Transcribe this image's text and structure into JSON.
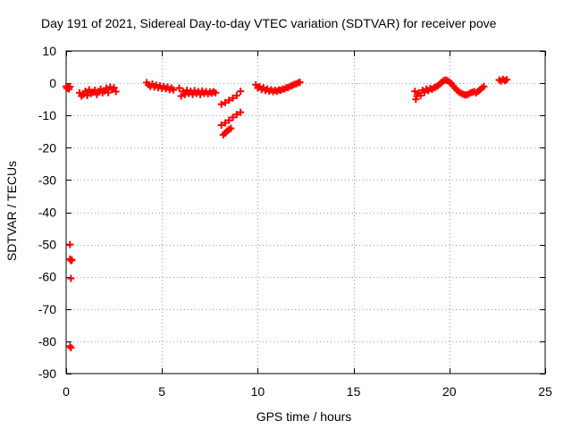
{
  "chart_data": {
    "type": "scatter",
    "title": "Day 191 of 2021, Sidereal Day-to-day VTEC variation (SDTVAR) for receiver pove",
    "xlabel": "GPS time / hours",
    "ylabel": "SDTVAR / TECUs",
    "xlim": [
      0,
      25
    ],
    "ylim": [
      -90,
      10
    ],
    "xticks": [
      0,
      5,
      10,
      15,
      20,
      25
    ],
    "yticks": [
      10,
      0,
      -10,
      -20,
      -30,
      -40,
      -50,
      -60,
      -70,
      -80,
      -90
    ],
    "grid": true,
    "marker": "+",
    "colors": {
      "points": "#ff0000",
      "grid": "#a0a0a0",
      "axis": "#000000"
    },
    "series": [
      {
        "name": "SDTVAR",
        "points": [
          [
            0.0,
            -1.0
          ],
          [
            0.05,
            -1.6
          ],
          [
            0.1,
            -1.3
          ],
          [
            0.15,
            -1.8
          ],
          [
            0.2,
            -1.1
          ],
          [
            0.2,
            -50.0
          ],
          [
            0.2,
            -54.5
          ],
          [
            0.25,
            -55.0
          ],
          [
            0.3,
            -54.8
          ],
          [
            0.25,
            -60.5
          ],
          [
            0.2,
            -81.5
          ],
          [
            0.25,
            -82.0
          ],
          [
            0.7,
            -3.0
          ],
          [
            0.8,
            -4.0
          ],
          [
            0.9,
            -3.5
          ],
          [
            1.0,
            -2.5
          ],
          [
            1.1,
            -3.8
          ],
          [
            1.2,
            -2.0
          ],
          [
            1.3,
            -3.2
          ],
          [
            1.4,
            -2.8
          ],
          [
            1.5,
            -2.2
          ],
          [
            1.6,
            -3.5
          ],
          [
            1.7,
            -2.6
          ],
          [
            1.8,
            -1.8
          ],
          [
            1.9,
            -3.0
          ],
          [
            2.0,
            -2.4
          ],
          [
            2.1,
            -1.5
          ],
          [
            2.2,
            -2.9
          ],
          [
            2.3,
            -1.2
          ],
          [
            2.4,
            -2.0
          ],
          [
            2.5,
            -1.4
          ],
          [
            2.6,
            -2.6
          ],
          [
            4.2,
            0.2
          ],
          [
            4.3,
            -0.5
          ],
          [
            4.4,
            -1.0
          ],
          [
            4.5,
            -0.2
          ],
          [
            4.6,
            -1.2
          ],
          [
            4.7,
            -0.6
          ],
          [
            4.8,
            -1.4
          ],
          [
            4.9,
            -0.8
          ],
          [
            5.0,
            -1.6
          ],
          [
            5.1,
            -1.0
          ],
          [
            5.2,
            -1.7
          ],
          [
            5.3,
            -1.2
          ],
          [
            5.4,
            -2.0
          ],
          [
            5.5,
            -1.5
          ],
          [
            5.6,
            -2.1
          ],
          [
            5.9,
            -1.5
          ],
          [
            6.0,
            -4.0
          ],
          [
            6.1,
            -2.5
          ],
          [
            6.2,
            -3.5
          ],
          [
            6.3,
            -2.2
          ],
          [
            6.4,
            -3.2
          ],
          [
            6.5,
            -2.5
          ],
          [
            6.6,
            -3.5
          ],
          [
            6.7,
            -2.3
          ],
          [
            6.8,
            -3.2
          ],
          [
            6.9,
            -2.6
          ],
          [
            7.0,
            -3.5
          ],
          [
            7.1,
            -2.4
          ],
          [
            7.2,
            -3.2
          ],
          [
            7.3,
            -2.6
          ],
          [
            7.4,
            -3.3
          ],
          [
            7.5,
            -2.7
          ],
          [
            7.6,
            -3.1
          ],
          [
            7.7,
            -2.6
          ],
          [
            7.8,
            -3.0
          ],
          [
            8.1,
            -6.5
          ],
          [
            8.3,
            -6.0
          ],
          [
            8.5,
            -5.3
          ],
          [
            8.7,
            -4.6
          ],
          [
            8.9,
            -3.8
          ],
          [
            9.1,
            -2.5
          ],
          [
            8.1,
            -13.0
          ],
          [
            8.3,
            -12.3
          ],
          [
            8.5,
            -11.5
          ],
          [
            8.7,
            -10.6
          ],
          [
            8.9,
            -9.7
          ],
          [
            9.1,
            -9.0
          ],
          [
            8.2,
            -16.0
          ],
          [
            8.3,
            -15.5
          ],
          [
            8.4,
            -14.8
          ],
          [
            8.5,
            -14.3
          ],
          [
            8.6,
            -14.0
          ],
          [
            9.9,
            -0.5
          ],
          [
            10.0,
            -1.5
          ],
          [
            10.1,
            -1.0
          ],
          [
            10.2,
            -2.0
          ],
          [
            10.3,
            -1.4
          ],
          [
            10.4,
            -2.3
          ],
          [
            10.5,
            -1.8
          ],
          [
            10.6,
            -2.5
          ],
          [
            10.7,
            -2.0
          ],
          [
            10.8,
            -2.6
          ],
          [
            10.9,
            -2.2
          ],
          [
            11.0,
            -2.5
          ],
          [
            11.1,
            -2.1
          ],
          [
            11.2,
            -2.2
          ],
          [
            11.3,
            -1.8
          ],
          [
            11.4,
            -1.8
          ],
          [
            11.5,
            -1.4
          ],
          [
            11.6,
            -1.3
          ],
          [
            11.7,
            -0.9
          ],
          [
            11.8,
            -0.7
          ],
          [
            11.9,
            -0.4
          ],
          [
            12.0,
            -0.2
          ],
          [
            12.1,
            0.1
          ],
          [
            12.2,
            0.3
          ],
          [
            18.2,
            -2.5
          ],
          [
            18.25,
            -5.0
          ],
          [
            18.3,
            -4.0
          ],
          [
            18.4,
            -3.0
          ],
          [
            18.5,
            -3.8
          ],
          [
            18.6,
            -2.2
          ],
          [
            18.7,
            -2.8
          ],
          [
            18.8,
            -1.8
          ],
          [
            18.9,
            -2.3
          ],
          [
            19.0,
            -1.6
          ],
          [
            19.1,
            -1.9
          ],
          [
            19.2,
            -1.4
          ],
          [
            19.3,
            -1.2
          ],
          [
            19.4,
            -0.8
          ],
          [
            19.5,
            -0.3
          ],
          [
            19.6,
            0.3
          ],
          [
            19.7,
            0.8
          ],
          [
            19.8,
            1.0
          ],
          [
            19.9,
            0.8
          ],
          [
            20.0,
            0.4
          ],
          [
            20.1,
            -0.1
          ],
          [
            20.2,
            -0.8
          ],
          [
            20.3,
            -1.5
          ],
          [
            20.4,
            -2.2
          ],
          [
            20.5,
            -2.7
          ],
          [
            20.6,
            -3.1
          ],
          [
            20.7,
            -3.4
          ],
          [
            20.8,
            -3.6
          ],
          [
            20.9,
            -3.6
          ],
          [
            21.0,
            -3.4
          ],
          [
            21.1,
            -3.0
          ],
          [
            21.2,
            -2.8
          ],
          [
            21.3,
            -2.6
          ],
          [
            21.4,
            -3.0
          ],
          [
            21.5,
            -2.5
          ],
          [
            21.6,
            -2.0
          ],
          [
            21.7,
            -1.5
          ],
          [
            21.8,
            -1.0
          ],
          [
            22.6,
            1.0
          ],
          [
            22.7,
            0.7
          ],
          [
            22.8,
            1.2
          ],
          [
            22.9,
            0.8
          ],
          [
            23.0,
            1.1
          ]
        ]
      }
    ]
  }
}
